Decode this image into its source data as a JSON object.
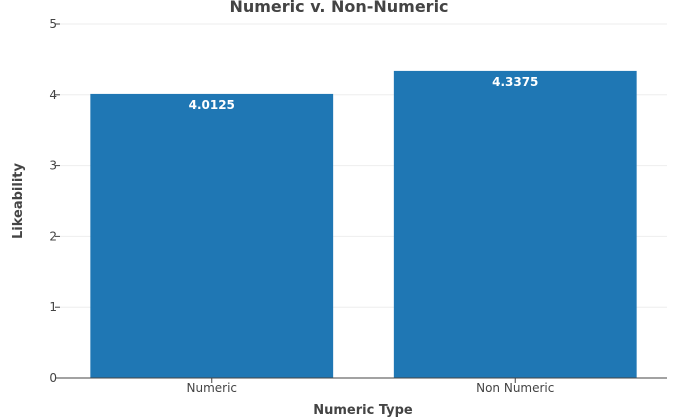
{
  "chart_data": {
    "type": "bar",
    "title": "Numeric v. Non-Numeric",
    "xlabel": "Numeric Type",
    "ylabel": "Likeability",
    "categories": [
      "Numeric",
      "Non Numeric"
    ],
    "values": [
      4.0125,
      4.3375
    ],
    "data_labels": [
      "4.0125",
      "4.3375"
    ],
    "ylim": [
      0,
      5
    ],
    "yticks": [
      0,
      1,
      2,
      3,
      4,
      5
    ],
    "grid": true,
    "legend": "none",
    "colors": {
      "bar": "#1f77b4",
      "grid": "#eeeeee",
      "axis": "#444444",
      "label": "#ffffff"
    }
  }
}
